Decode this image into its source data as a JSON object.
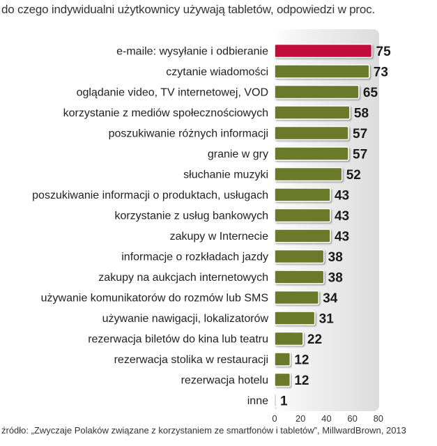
{
  "subtitle": "do czego indywidualni użytkownicy używają tabletów, odpowiedzi w proc.",
  "source": "źródło: „Zwyczaje Polaków związane z korzystaniem ze smartfonów i tabletów”, MillwardBrown, 2013",
  "colors": {
    "highlight": "#c0103a",
    "bar": "#6b7a2a",
    "background_panel": "#e3e3e3",
    "bar_outline": "#ffffff"
  },
  "chart_data": {
    "type": "bar",
    "orientation": "horizontal",
    "categories": [
      "e-maile: wysyłanie i odbieranie",
      "czytanie wiadomości",
      "oglądanie video, TV internetowej, VOD",
      "korzystanie z mediów społecznościowych",
      "poszukiwanie różnych informacji",
      "granie w gry",
      "słuchanie muzyki",
      "poszukiwanie informacji o produktach, usługach",
      "korzystanie z usług bankowych",
      "zakupy w Internecie",
      "informacje o rozkładach jazdy",
      "zakupy na aukcjach internetowych",
      "używanie komunikatorów do rozmów lub SMS",
      "używanie nawigacji, lokalizatorów",
      "rezerwacja biletów do kina lub teatru",
      "rezerwacja stolika w restauracji",
      "rezerwacja hotelu",
      "inne"
    ],
    "values": [
      75,
      73,
      65,
      58,
      57,
      57,
      52,
      43,
      43,
      43,
      38,
      38,
      34,
      31,
      22,
      12,
      12,
      1
    ],
    "highlight_index": 0,
    "xlim": [
      0,
      80
    ],
    "xticks": [
      "0",
      "20",
      "40",
      "60",
      "80"
    ],
    "grid": false
  }
}
